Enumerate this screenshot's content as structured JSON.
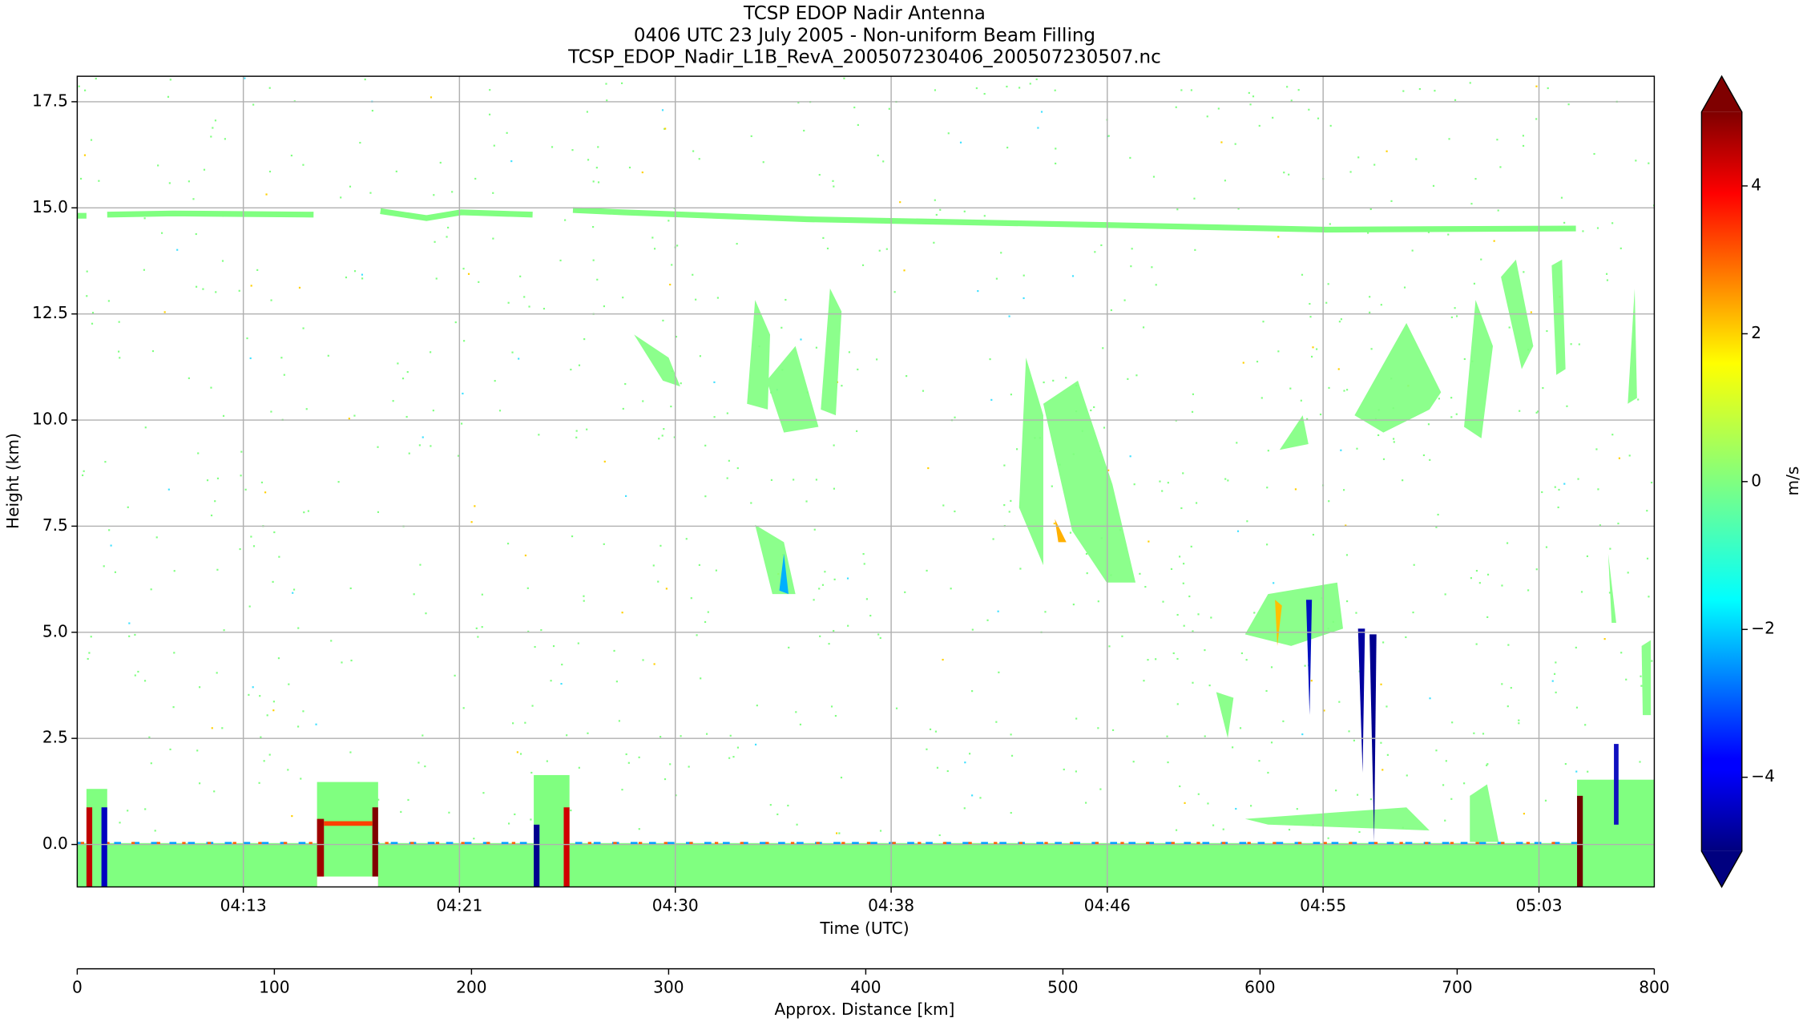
{
  "chart_data": {
    "type": "mesh",
    "title": "TCSP EDOP Nadir Antenna",
    "subtitle": "0406 UTC 23 July 2005 - Non-uniform Beam Filling",
    "filename": "TCSP_EDOP_Nadir_L1B_RevA_200507230406_200507230507.nc",
    "x_label": "Time (UTC)",
    "y_label": "Height (km)",
    "xlim": [
      6.92,
      67.78
    ],
    "xticks": [
      {
        "value": 13.33,
        "label": "04:13"
      },
      {
        "value": 21.67,
        "label": "04:21"
      },
      {
        "value": 30.0,
        "label": "04:30"
      },
      {
        "value": 38.33,
        "label": "04:38"
      },
      {
        "value": 46.67,
        "label": "04:46"
      },
      {
        "value": 55.0,
        "label": "04:55"
      },
      {
        "value": 63.33,
        "label": "05:03"
      }
    ],
    "ylim": [
      -1.0,
      18.1
    ],
    "yticks": [
      {
        "value": 0,
        "label": "0.0"
      },
      {
        "value": 2.5,
        "label": "2.5"
      },
      {
        "value": 5,
        "label": "5.0"
      },
      {
        "value": 7.5,
        "label": "7.5"
      },
      {
        "value": 10,
        "label": "10.0"
      },
      {
        "value": 12.5,
        "label": "12.5"
      },
      {
        "value": 15,
        "label": "15.0"
      },
      {
        "value": 17.5,
        "label": "17.5"
      }
    ],
    "grid": true,
    "distance_axis": {
      "label": "Approx. Distance [km]",
      "xlim": [
        0,
        800
      ],
      "xticks": [
        0,
        100,
        200,
        300,
        400,
        500,
        600,
        700,
        800
      ]
    },
    "colorbar": {
      "label": "m/s",
      "colormap": "jet",
      "clim": [
        -5,
        5
      ],
      "extend": "both",
      "ticks": [
        {
          "value": -4,
          "label": "−4"
        },
        {
          "value": -2,
          "label": "−2"
        },
        0,
        2,
        4
      ]
    }
  }
}
